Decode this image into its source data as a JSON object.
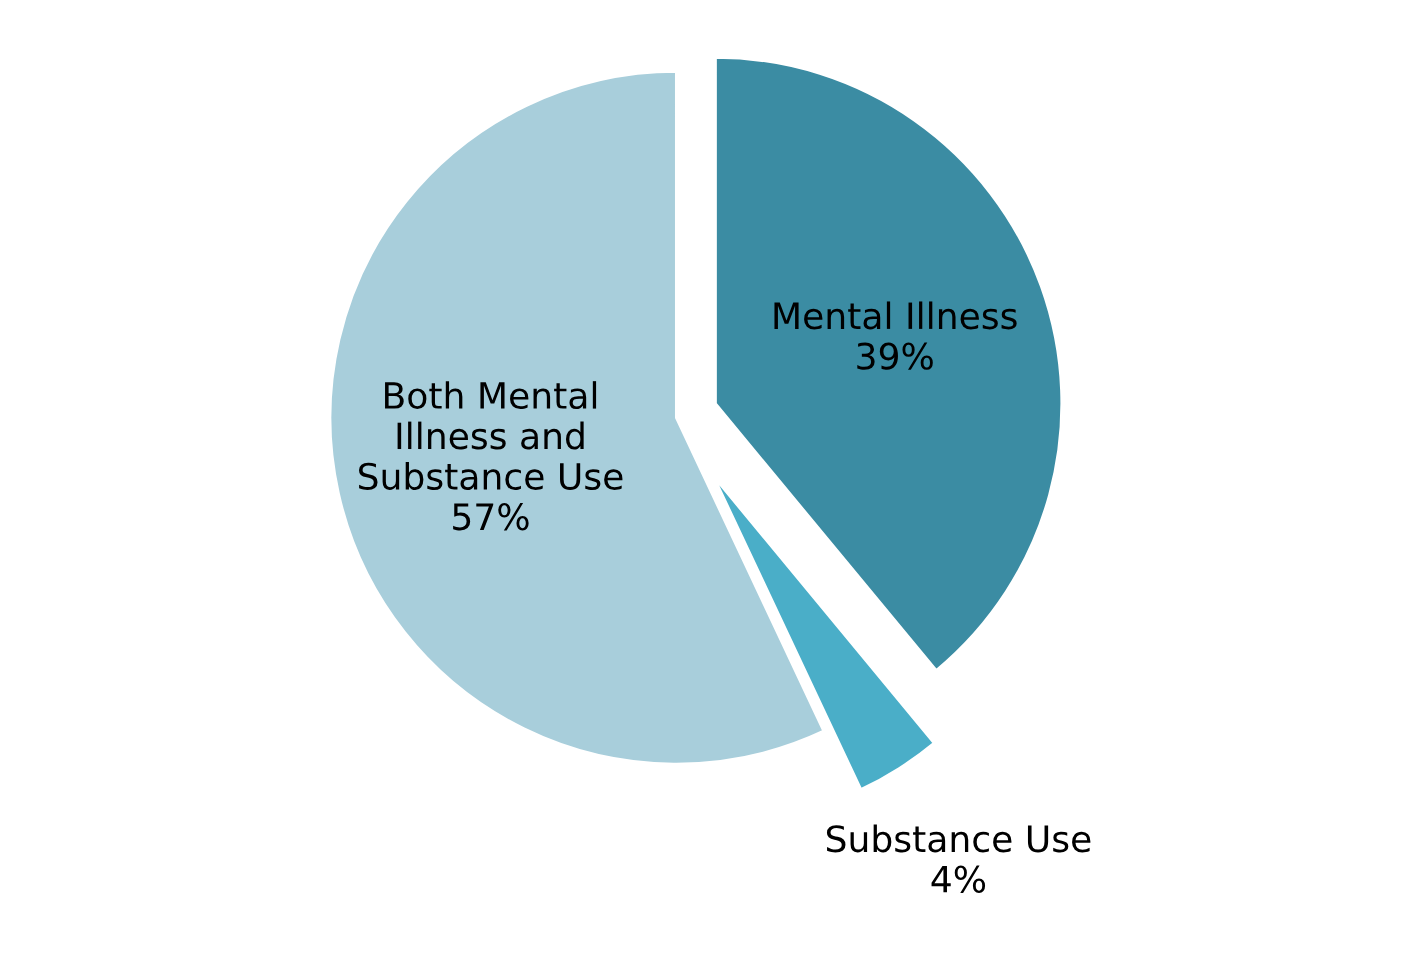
{
  "chart_data": {
    "type": "pie",
    "categories": [
      "Mental Illness",
      "Substance Use",
      "Both Mental\nIllness and\nSubstance Use"
    ],
    "values": [
      39,
      4,
      57
    ],
    "value_labels": [
      "39%",
      "4%",
      "57%"
    ],
    "colors": [
      "#3b8ca3",
      "#4aaec8",
      "#a8cedb"
    ]
  }
}
